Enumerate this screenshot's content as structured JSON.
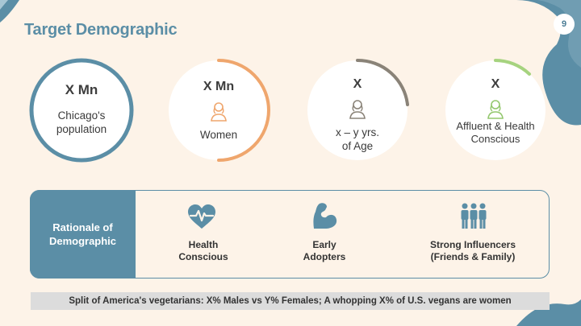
{
  "slide": {
    "title": "Target Demographic",
    "page_number": "9"
  },
  "colors": {
    "background": "#fdf3e8",
    "accent_blue": "#5b8ea6",
    "accent_orange": "#efa66d",
    "accent_gray": "#8a8378",
    "accent_green": "#a6d37f"
  },
  "stats": [
    {
      "value": "X Mn",
      "label_line1": "Chicago's",
      "label_line2": "population",
      "icon": "",
      "ring_progress": 1.0
    },
    {
      "value": "X Mn",
      "label_line1": "Women",
      "label_line2": "",
      "icon": "woman-icon",
      "ring_progress": 0.5
    },
    {
      "value": "X",
      "label_line1": "x – y yrs.",
      "label_line2": "of Age",
      "icon": "person-icon",
      "ring_progress": 0.25
    },
    {
      "value": "X",
      "label_line1": "Affluent & Health",
      "label_line2": "Conscious",
      "icon": "woman-icon",
      "ring_progress": 0.1
    }
  ],
  "rationale": {
    "label_line1": "Rationale of",
    "label_line2": "Demographic",
    "items": [
      {
        "line1": "Health",
        "line2": "Conscious",
        "icon": "heart-pulse-icon"
      },
      {
        "line1": "Early",
        "line2": "Adopters",
        "icon": "flexed-arm-icon"
      },
      {
        "line1": "Strong Influencers",
        "line2": "(Friends & Family)",
        "icon": "group-icon"
      }
    ]
  },
  "footer": {
    "text": "Split of America's vegetarians: X% Males vs Y% Females; A whopping X% of U.S. vegans are women"
  }
}
